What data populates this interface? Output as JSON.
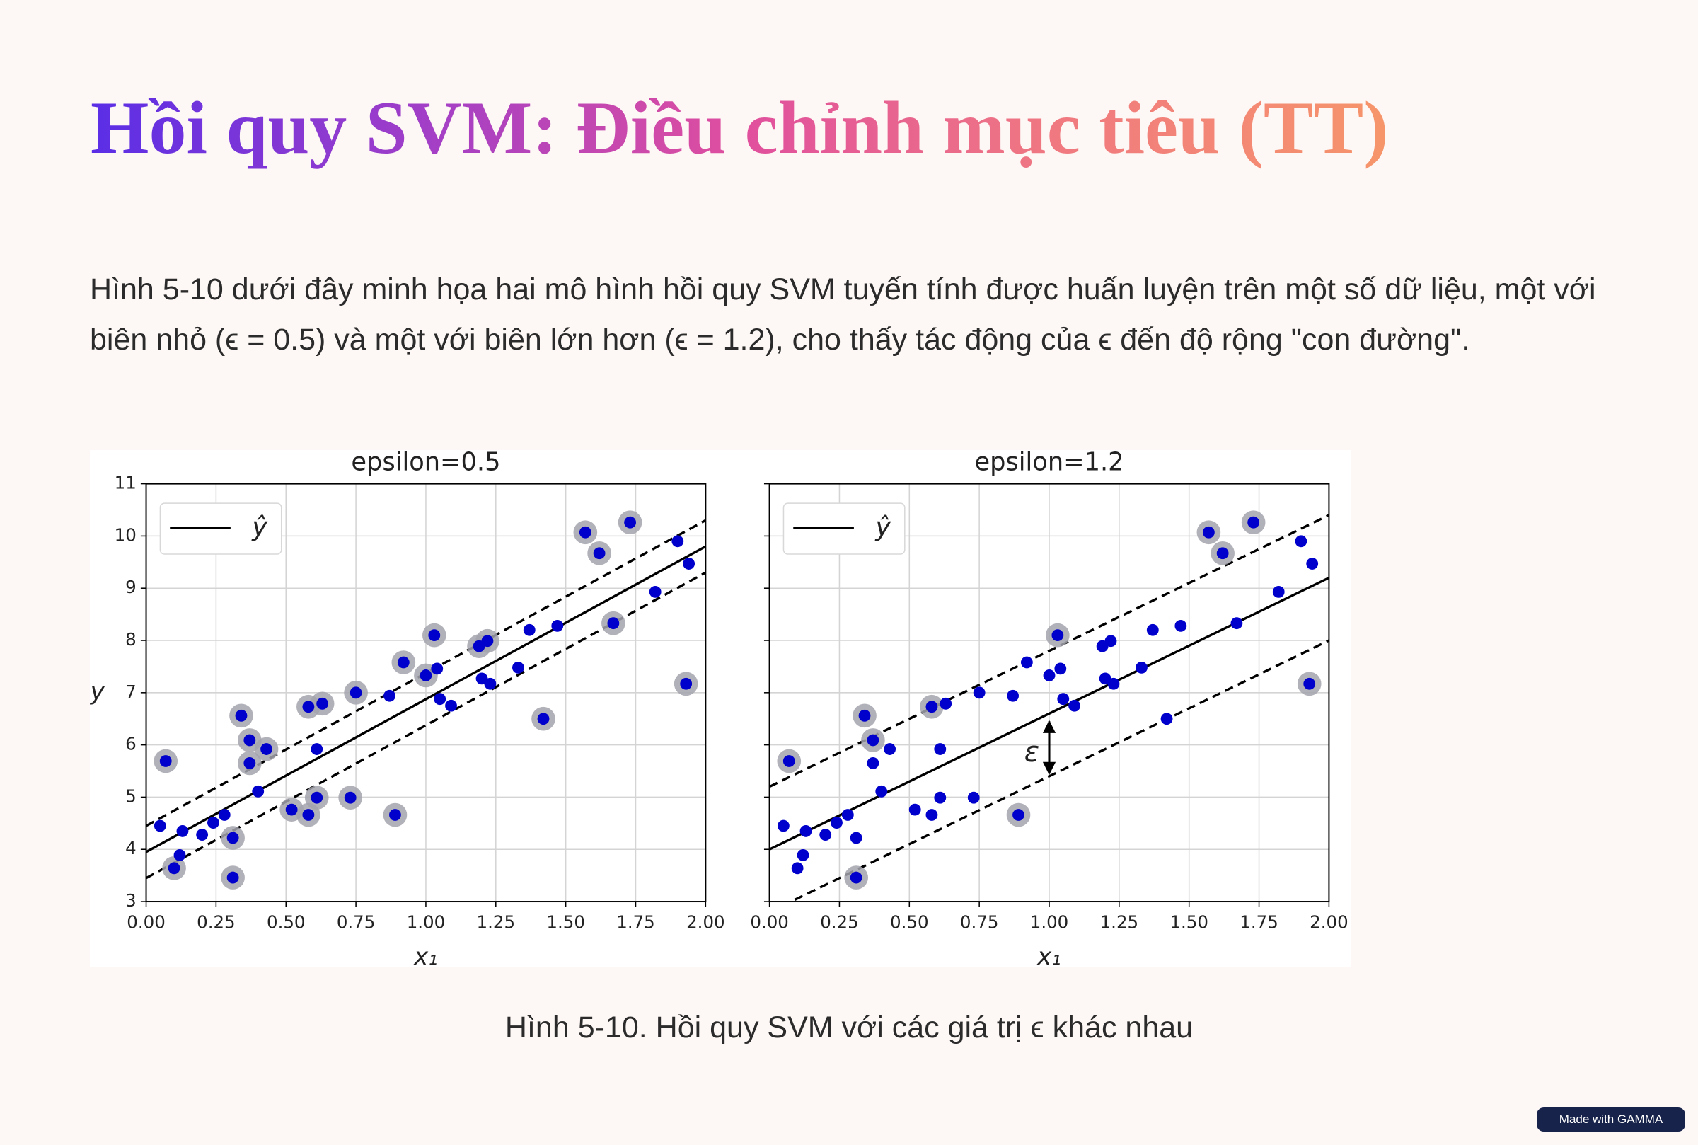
{
  "title": "Hồi quy SVM: Điều chỉnh mục tiêu (TT)",
  "body": "Hình 5-10 dưới đây minh họa hai mô hình hồi quy SVM tuyến tính được huấn luyện trên một số dữ liệu, một với biên nhỏ (ϵ = 0.5) và một với biên lớn hơn (ϵ = 1.2), cho thấy tác động của ϵ đến độ rộng \"con đường\".",
  "caption": "Hình 5-10. Hồi quy SVM với các giá trị ϵ khác nhau",
  "badge": "Made with GAMMA",
  "chart_data": [
    {
      "type": "scatter",
      "title": "epsilon=0.5",
      "xlabel": "x₁",
      "ylabel": "y",
      "x": [
        0.05,
        0.07,
        0.1,
        0.12,
        0.13,
        0.2,
        0.24,
        0.28,
        0.31,
        0.31,
        0.34,
        0.37,
        0.37,
        0.43,
        0.4,
        0.52,
        0.58,
        0.58,
        0.61,
        0.63,
        0.61,
        0.73,
        0.75,
        0.87,
        0.89,
        0.92,
        1.0,
        1.03,
        1.04,
        1.05,
        1.09,
        1.19,
        1.22,
        1.2,
        1.23,
        1.33,
        1.37,
        1.42,
        1.47,
        1.57,
        1.62,
        1.67,
        1.73,
        1.82,
        1.9,
        1.94,
        1.93
      ],
      "y": [
        4.45,
        5.69,
        3.64,
        3.89,
        4.35,
        4.28,
        4.51,
        4.66,
        4.22,
        3.46,
        6.56,
        6.09,
        5.65,
        5.92,
        5.11,
        4.76,
        4.66,
        6.73,
        4.99,
        6.79,
        5.92,
        4.99,
        7.0,
        6.94,
        4.66,
        7.58,
        7.33,
        8.1,
        7.46,
        6.88,
        6.75,
        7.89,
        7.99,
        7.27,
        7.17,
        7.48,
        8.2,
        6.5,
        8.28,
        10.07,
        9.67,
        8.33,
        10.26,
        8.93,
        9.9,
        9.47,
        7.17
      ],
      "highlight": [
        false,
        true,
        true,
        false,
        false,
        false,
        false,
        false,
        true,
        true,
        true,
        true,
        true,
        true,
        false,
        true,
        true,
        true,
        true,
        true,
        false,
        true,
        true,
        false,
        true,
        true,
        true,
        true,
        false,
        false,
        false,
        true,
        true,
        false,
        false,
        false,
        false,
        true,
        false,
        true,
        true,
        true,
        true,
        false,
        false,
        false,
        true
      ],
      "point_color": "#0000cc",
      "highlight_color": "#a3a3ad",
      "series": [
        {
          "name": "ŷ",
          "color": "#000000",
          "style": "solid",
          "x": [
            0,
            2
          ],
          "values": [
            3.95,
            9.8
          ]
        },
        {
          "color": "#000000",
          "style": "dashed",
          "x": [
            0,
            2
          ],
          "values": [
            4.45,
            10.3
          ]
        },
        {
          "color": "#000000",
          "style": "dashed",
          "x": [
            0,
            2
          ],
          "values": [
            3.45,
            9.3
          ]
        }
      ],
      "xlim": [
        0,
        2
      ],
      "ylim": [
        3,
        11
      ],
      "xticks": [
        {
          "value": 0,
          "label": "0.00"
        },
        {
          "value": 0.25,
          "label": "0.25"
        },
        {
          "value": 0.5,
          "label": "0.50"
        },
        {
          "value": 0.75,
          "label": "0.75"
        },
        {
          "value": 1,
          "label": "1.00"
        },
        {
          "value": 1.25,
          "label": "1.25"
        },
        {
          "value": 1.5,
          "label": "1.50"
        },
        {
          "value": 1.75,
          "label": "1.75"
        },
        {
          "value": 2,
          "label": "2.00"
        }
      ],
      "yticks": [
        3,
        4,
        5,
        6,
        7,
        8,
        9,
        10,
        11
      ],
      "ytick_labels": true,
      "grid": true,
      "legend": "upper left"
    },
    {
      "type": "scatter",
      "title": "epsilon=1.2",
      "xlabel": "x₁",
      "x": [
        0.05,
        0.07,
        0.1,
        0.12,
        0.13,
        0.2,
        0.24,
        0.28,
        0.31,
        0.31,
        0.34,
        0.37,
        0.37,
        0.43,
        0.4,
        0.52,
        0.58,
        0.58,
        0.61,
        0.63,
        0.61,
        0.73,
        0.75,
        0.87,
        0.89,
        0.92,
        1.0,
        1.03,
        1.04,
        1.05,
        1.09,
        1.19,
        1.22,
        1.2,
        1.23,
        1.33,
        1.37,
        1.42,
        1.47,
        1.57,
        1.62,
        1.67,
        1.73,
        1.82,
        1.9,
        1.94,
        1.93
      ],
      "y": [
        4.45,
        5.69,
        3.64,
        3.89,
        4.35,
        4.28,
        4.51,
        4.66,
        4.22,
        3.46,
        6.56,
        6.09,
        5.65,
        5.92,
        5.11,
        4.76,
        4.66,
        6.73,
        4.99,
        6.79,
        5.92,
        4.99,
        7.0,
        6.94,
        4.66,
        7.58,
        7.33,
        8.1,
        7.46,
        6.88,
        6.75,
        7.89,
        7.99,
        7.27,
        7.17,
        7.48,
        8.2,
        6.5,
        8.28,
        10.07,
        9.67,
        8.33,
        10.26,
        8.93,
        9.9,
        9.47,
        7.17
      ],
      "highlight": [
        false,
        true,
        false,
        false,
        false,
        false,
        false,
        false,
        false,
        true,
        true,
        true,
        false,
        false,
        false,
        false,
        false,
        true,
        false,
        false,
        false,
        false,
        false,
        false,
        true,
        false,
        false,
        true,
        false,
        false,
        false,
        false,
        false,
        false,
        false,
        false,
        false,
        false,
        false,
        true,
        true,
        false,
        true,
        false,
        false,
        false,
        true
      ],
      "point_color": "#0000cc",
      "highlight_color": "#a3a3ad",
      "series": [
        {
          "name": "ŷ",
          "color": "#000000",
          "style": "solid",
          "x": [
            0,
            2
          ],
          "values": [
            4.0,
            9.2
          ]
        },
        {
          "color": "#000000",
          "style": "dashed",
          "x": [
            0,
            2
          ],
          "values": [
            5.2,
            10.4
          ]
        },
        {
          "color": "#000000",
          "style": "dashed",
          "x": [
            0,
            2
          ],
          "values": [
            2.8,
            8.0
          ]
        }
      ],
      "annotations": [
        {
          "text": "ε",
          "x": 1.0,
          "y_from": 5.45,
          "y_to": 6.45
        }
      ],
      "xlim": [
        0,
        2
      ],
      "ylim": [
        3,
        11
      ],
      "xticks": [
        {
          "value": 0,
          "label": "0.00"
        },
        {
          "value": 0.25,
          "label": "0.25"
        },
        {
          "value": 0.5,
          "label": "0.50"
        },
        {
          "value": 0.75,
          "label": "0.75"
        },
        {
          "value": 1,
          "label": "1.00"
        },
        {
          "value": 1.25,
          "label": "1.25"
        },
        {
          "value": 1.5,
          "label": "1.50"
        },
        {
          "value": 1.75,
          "label": "1.75"
        },
        {
          "value": 2,
          "label": "2.00"
        }
      ],
      "yticks": [
        3,
        4,
        5,
        6,
        7,
        8,
        9,
        10,
        11
      ],
      "ytick_labels": false,
      "grid": true,
      "legend": "upper left"
    }
  ]
}
